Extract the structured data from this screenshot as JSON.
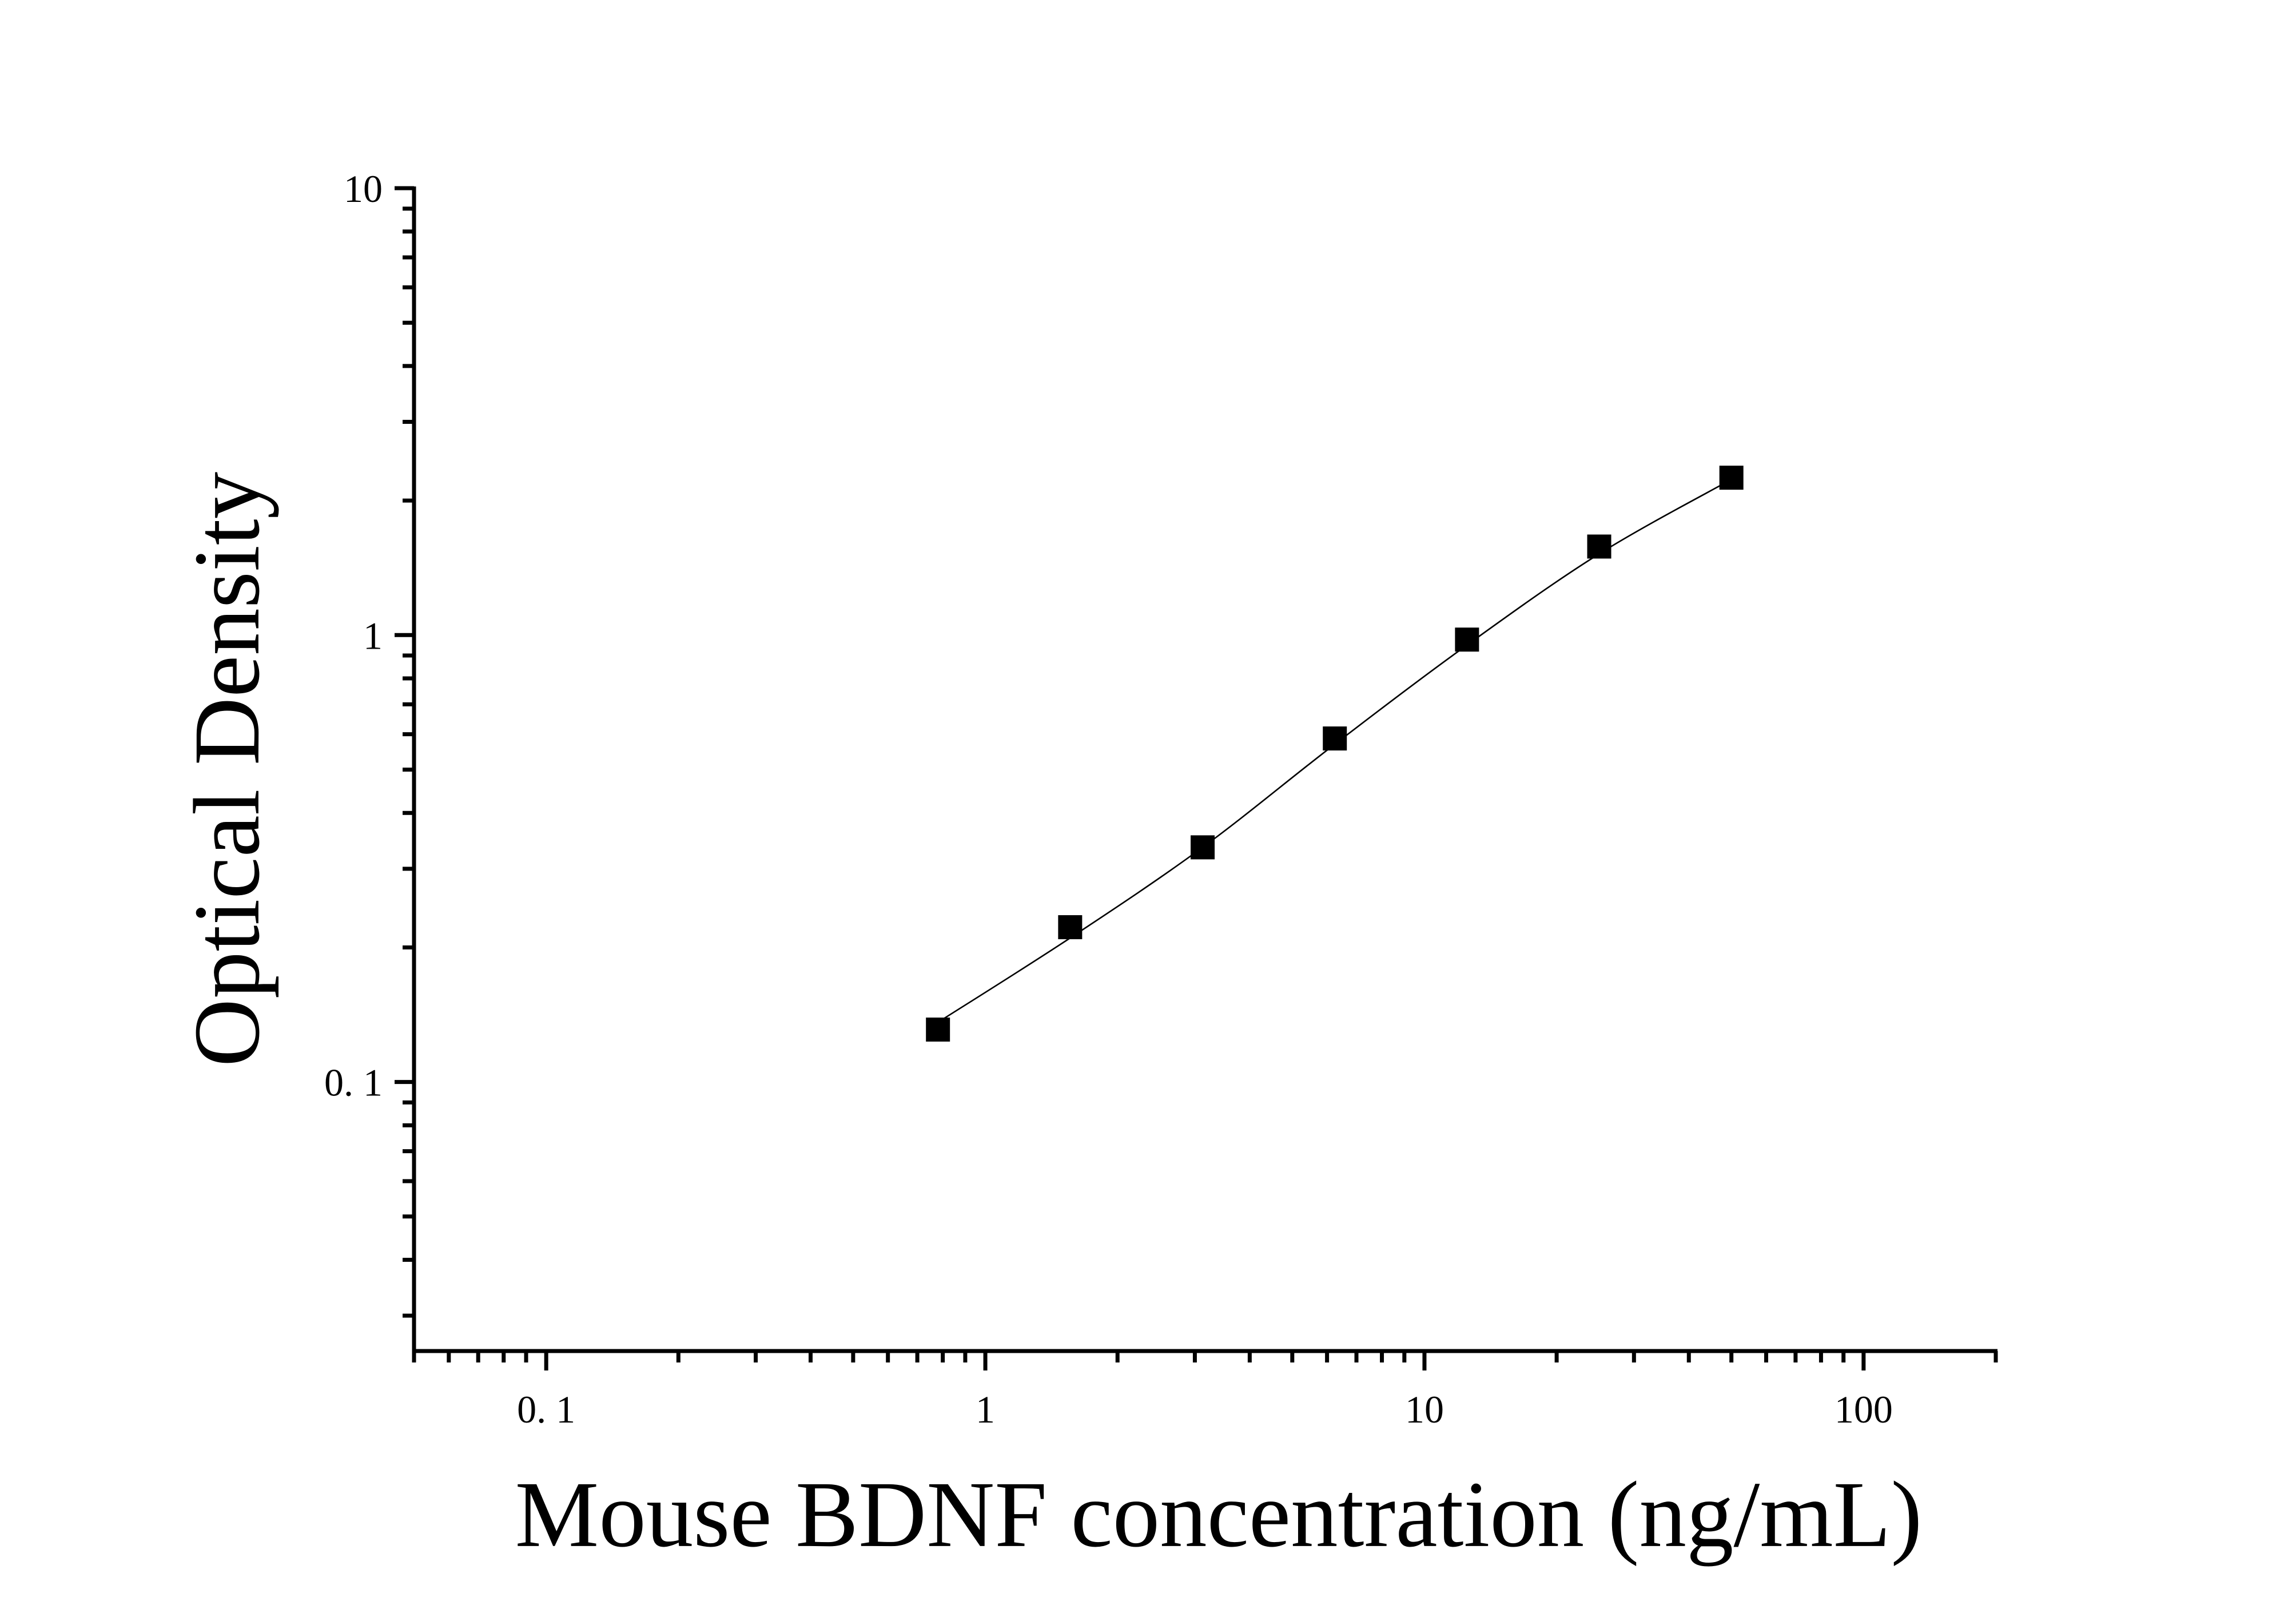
{
  "chart_data": {
    "type": "scatter",
    "x_label": "Mouse BDNF concentration (ng/mL)",
    "y_label": "Optical Density",
    "x": [
      0.78,
      1.56,
      3.125,
      6.25,
      12.5,
      25,
      50
    ],
    "values": [
      0.131,
      0.222,
      0.335,
      0.587,
      0.977,
      1.578,
      2.25
    ],
    "color": "#000000",
    "fit": {
      "x": [
        0.78,
        1.56,
        3.125,
        6.25,
        12.5,
        25,
        50
      ],
      "values": [
        0.136,
        0.21,
        0.335,
        0.57,
        0.95,
        1.52,
        2.23
      ],
      "color": "#000000"
    },
    "xscale": "log",
    "yscale": "log",
    "xlim": [
      0.05,
      200
    ],
    "ylim": [
      0.025,
      10
    ],
    "xticks": [
      {
        "value": 0.1,
        "label": "0. 1"
      },
      1,
      10,
      100
    ],
    "yticks": [
      {
        "value": 0.1,
        "label": "0. 1"
      },
      1,
      10
    ],
    "xminorticks": [
      0.05,
      0.06,
      0.07,
      0.08,
      0.09,
      0.2,
      0.3,
      0.4,
      0.5,
      0.6,
      0.7,
      0.8,
      0.9,
      2,
      3,
      4,
      5,
      6,
      7,
      8,
      9,
      20,
      30,
      40,
      50,
      60,
      70,
      80,
      90,
      200
    ],
    "yminorticks": [
      0.03,
      0.04,
      0.05,
      0.06,
      0.07,
      0.08,
      0.09,
      0.2,
      0.3,
      0.4,
      0.5,
      0.6,
      0.7,
      0.8,
      0.9,
      2,
      3,
      4,
      5,
      6,
      7,
      8,
      9
    ],
    "grid": false
  }
}
